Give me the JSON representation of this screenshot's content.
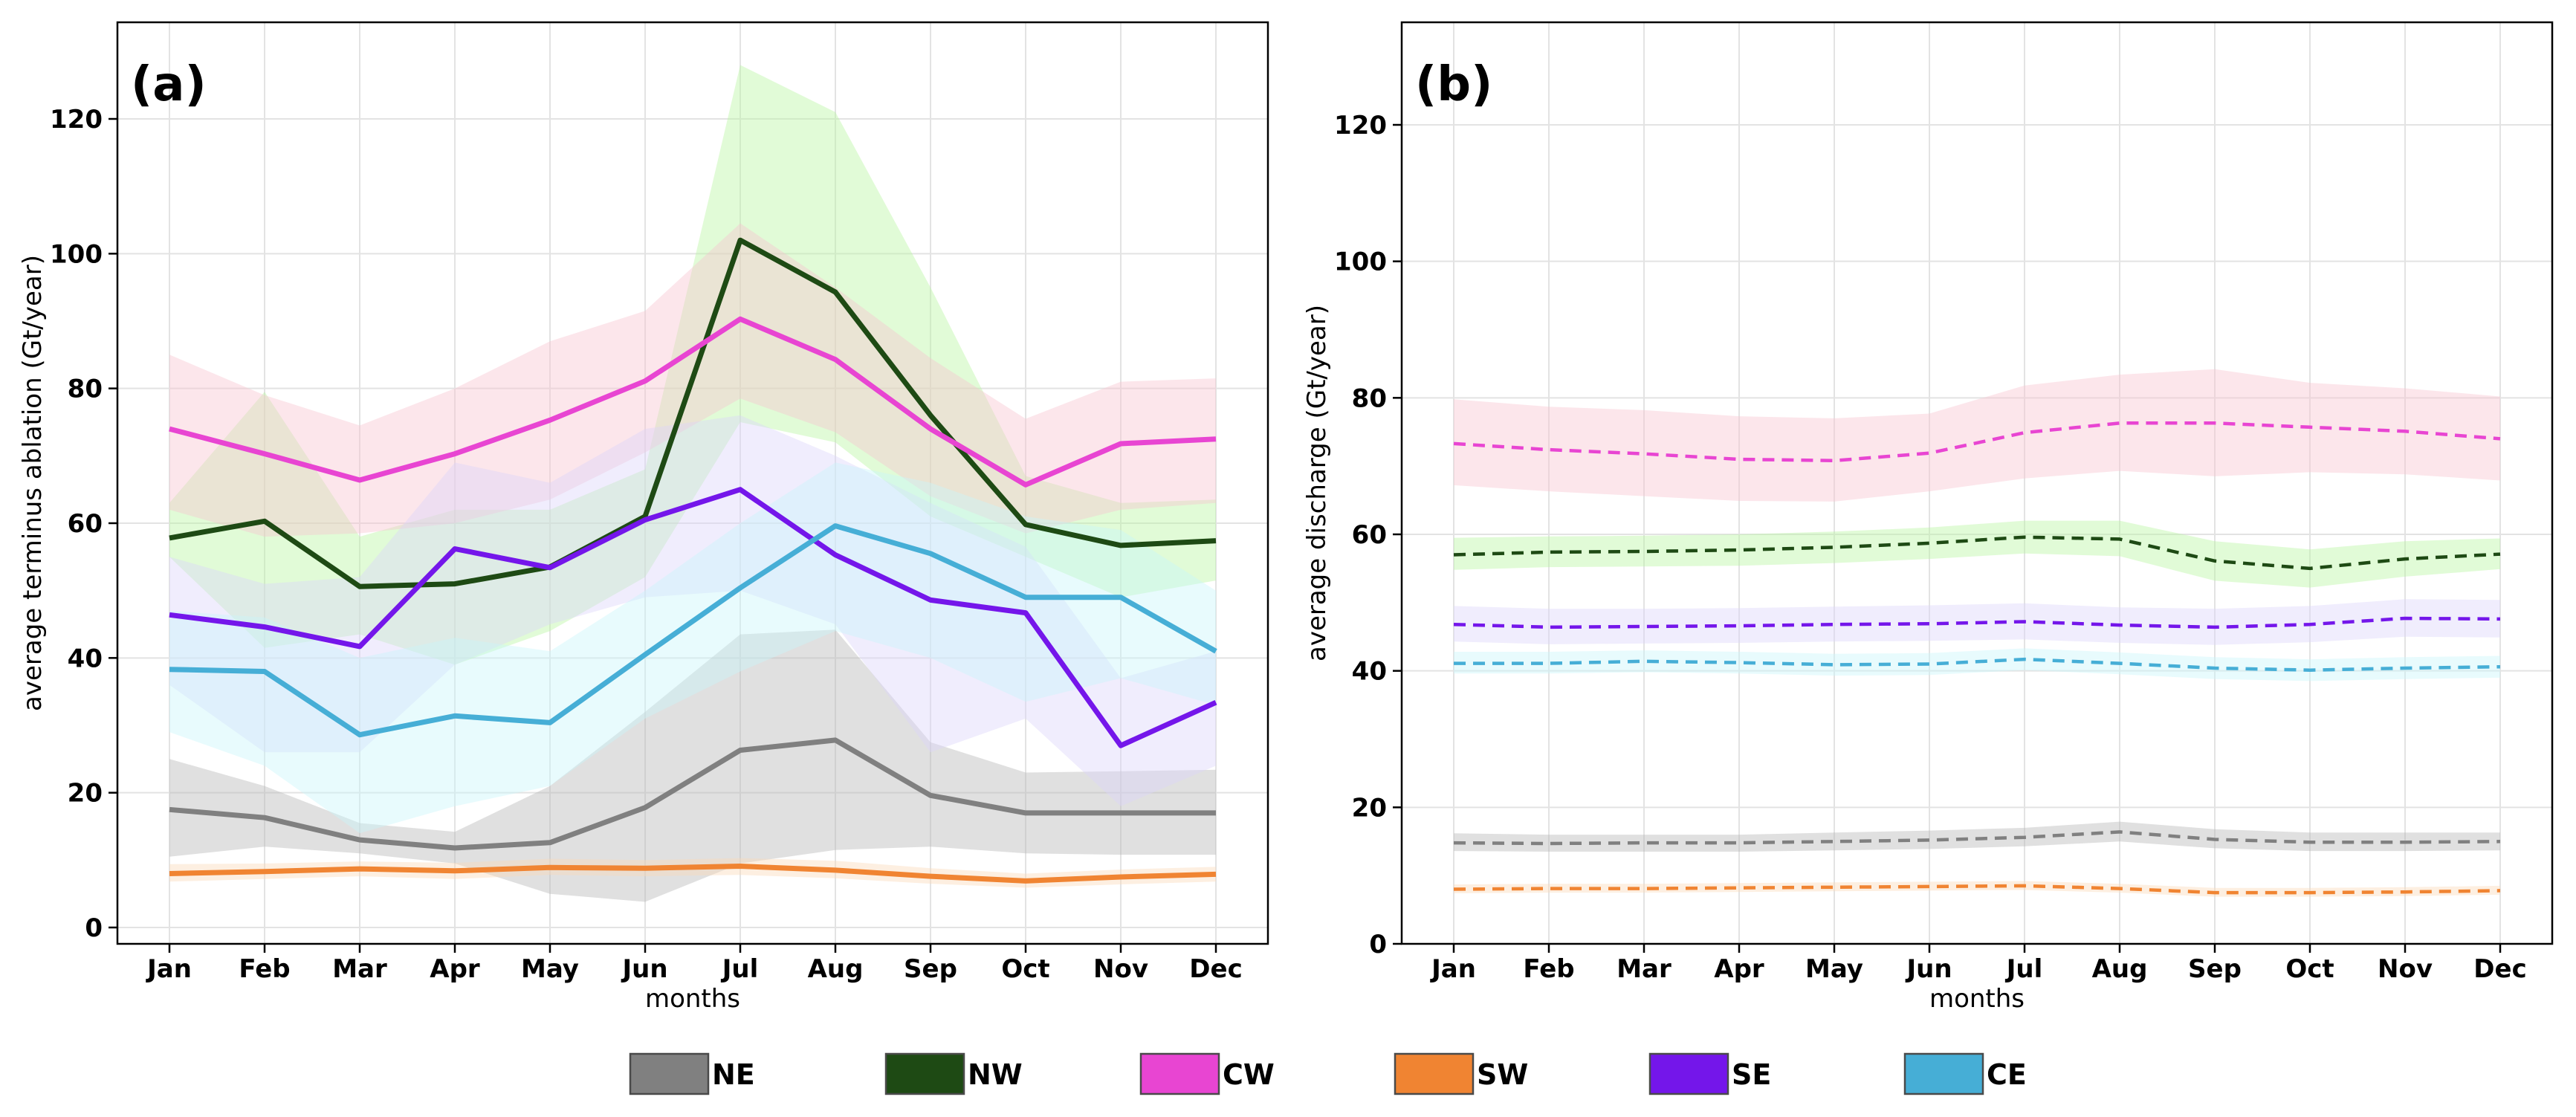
{
  "chart_data": [
    {
      "type": "line",
      "panel_label": "(a)",
      "xlabel": "months",
      "ylabel": "average terminus ablation (Gt/year)",
      "categories": [
        "Jan",
        "Feb",
        "Mar",
        "Apr",
        "May",
        "Jun",
        "Jul",
        "Aug",
        "Sep",
        "Oct",
        "Nov",
        "Dec"
      ],
      "ylim": [
        -2,
        135
      ],
      "yticks": [
        0,
        20,
        40,
        60,
        80,
        100,
        120
      ],
      "line_style": "solid",
      "grid": true,
      "series": [
        {
          "name": "NE",
          "color": "#808080",
          "band_color": "#b4b4b4",
          "values": [
            17.5,
            16.3,
            13.0,
            11.8,
            12.6,
            17.8,
            26.3,
            27.8,
            19.6,
            17.0,
            17.0,
            17.0
          ],
          "lower": [
            10.5,
            12.0,
            11.0,
            9.5,
            5.0,
            3.8,
            9.5,
            11.5,
            12.0,
            11.0,
            10.8,
            10.8
          ],
          "upper": [
            25.0,
            21.0,
            15.5,
            14.2,
            21.0,
            32.0,
            43.5,
            44.2,
            27.5,
            23.0,
            23.2,
            23.4
          ]
        },
        {
          "name": "NW",
          "color": "#1e4a14",
          "band_color": "#b8f5a0",
          "values": [
            57.8,
            60.3,
            50.6,
            51.0,
            53.5,
            61.0,
            102.0,
            94.3,
            76.0,
            59.8,
            56.7,
            57.4
          ],
          "lower": [
            55.0,
            41.5,
            43.5,
            39.0,
            44.0,
            52.0,
            75.0,
            72.0,
            61.0,
            55.0,
            49.0,
            51.5
          ],
          "upper": [
            63.0,
            79.5,
            58.0,
            62.0,
            62.0,
            68.0,
            128.0,
            121.0,
            95.0,
            67.0,
            63.0,
            63.5
          ]
        },
        {
          "name": "CW",
          "color": "#e845d2",
          "band_color": "#f7c4cf",
          "values": [
            74.0,
            70.3,
            66.4,
            70.3,
            75.3,
            81.1,
            90.3,
            84.3,
            74.0,
            65.7,
            71.8,
            72.5
          ],
          "lower": [
            62.0,
            58.0,
            58.5,
            60.0,
            63.5,
            70.5,
            78.5,
            73.5,
            64.0,
            58.5,
            62.0,
            63.0
          ],
          "upper": [
            85.0,
            79.0,
            74.5,
            80.0,
            87.0,
            91.5,
            104.5,
            95.0,
            84.5,
            75.5,
            81.0,
            81.5
          ]
        },
        {
          "name": "SW",
          "color": "#f08432",
          "band_color": "#fbd9b7",
          "values": [
            8.0,
            8.3,
            8.7,
            8.4,
            8.9,
            8.8,
            9.1,
            8.5,
            7.6,
            6.9,
            7.5,
            7.9
          ],
          "lower": [
            6.8,
            7.2,
            7.6,
            7.2,
            7.8,
            7.6,
            7.8,
            7.3,
            6.5,
            5.9,
            6.4,
            6.8
          ],
          "upper": [
            9.4,
            9.5,
            9.8,
            9.6,
            10.2,
            10.0,
            10.3,
            9.9,
            8.8,
            8.0,
            8.6,
            9.0
          ]
        },
        {
          "name": "SE",
          "color": "#7416ea",
          "band_color": "#dcd4fa",
          "values": [
            46.4,
            44.6,
            41.7,
            56.2,
            53.4,
            60.5,
            65.0,
            55.3,
            48.6,
            46.7,
            27.0,
            33.4
          ],
          "lower": [
            36.0,
            26.0,
            26.0,
            39.0,
            45.0,
            49.0,
            50.0,
            45.0,
            26.0,
            31.0,
            18.0,
            24.0
          ],
          "upper": [
            55.0,
            51.0,
            52.0,
            69.0,
            66.0,
            74.0,
            76.0,
            70.0,
            63.0,
            56.5,
            37.0,
            41.0
          ]
        },
        {
          "name": "CE",
          "color": "#46aed6",
          "band_color": "#c8f5fb",
          "values": [
            38.3,
            38.0,
            28.6,
            31.4,
            30.4,
            40.5,
            50.4,
            59.6,
            55.5,
            49.0,
            49.0,
            41.0
          ],
          "lower": [
            29.0,
            24.0,
            14.0,
            18.0,
            21.0,
            31.0,
            38.0,
            44.0,
            40.0,
            33.5,
            37.0,
            33.0
          ],
          "upper": [
            47.0,
            46.0,
            40.0,
            43.0,
            41.0,
            50.0,
            60.0,
            69.0,
            66.0,
            61.0,
            59.0,
            50.0
          ]
        }
      ]
    },
    {
      "type": "line",
      "panel_label": "(b)",
      "xlabel": "months",
      "ylabel": "average discharge (Gt/year)",
      "categories": [
        "Jan",
        "Feb",
        "Mar",
        "Apr",
        "May",
        "Jun",
        "Jul",
        "Aug",
        "Sep",
        "Oct",
        "Nov",
        "Dec"
      ],
      "ylim": [
        0,
        135
      ],
      "yticks": [
        0,
        20,
        40,
        60,
        80,
        100,
        120
      ],
      "line_style": "dashed",
      "grid": true,
      "series": [
        {
          "name": "NE",
          "color": "#808080",
          "band_color": "#b4b4b4",
          "values": [
            14.8,
            14.7,
            14.8,
            14.8,
            15.0,
            15.2,
            15.6,
            16.4,
            15.3,
            14.9,
            14.9,
            15.0
          ],
          "lower": [
            13.6,
            13.5,
            13.5,
            13.5,
            13.7,
            13.9,
            14.3,
            15.0,
            14.0,
            13.6,
            13.6,
            13.7
          ],
          "upper": [
            16.2,
            16.0,
            16.0,
            16.0,
            16.3,
            16.6,
            17.0,
            17.9,
            16.8,
            16.3,
            16.3,
            16.3
          ]
        },
        {
          "name": "NW",
          "color": "#1e4a14",
          "band_color": "#b8f5a0",
          "values": [
            57.0,
            57.4,
            57.5,
            57.7,
            58.1,
            58.7,
            59.6,
            59.3,
            56.1,
            55.0,
            56.4,
            57.1
          ],
          "lower": [
            54.8,
            55.2,
            55.3,
            55.4,
            55.8,
            56.4,
            57.2,
            56.8,
            53.2,
            52.2,
            53.8,
            54.9
          ],
          "upper": [
            59.5,
            59.7,
            59.8,
            60.0,
            60.4,
            61.0,
            62.0,
            62.0,
            59.0,
            57.8,
            59.0,
            59.4
          ]
        },
        {
          "name": "CW",
          "color": "#e845d2",
          "band_color": "#f7c4cf",
          "values": [
            73.3,
            72.4,
            71.8,
            71.0,
            70.8,
            71.9,
            74.9,
            76.3,
            76.3,
            75.7,
            75.1,
            74.0
          ],
          "lower": [
            67.2,
            66.3,
            65.6,
            64.9,
            64.8,
            66.3,
            68.2,
            69.3,
            68.5,
            69.1,
            68.8,
            67.9
          ],
          "upper": [
            79.8,
            78.7,
            78.2,
            77.3,
            77.0,
            77.7,
            81.8,
            83.4,
            84.2,
            82.2,
            81.4,
            80.2
          ]
        },
        {
          "name": "SW",
          "color": "#f08432",
          "band_color": "#fbd9b7",
          "values": [
            8.0,
            8.1,
            8.1,
            8.2,
            8.3,
            8.4,
            8.5,
            8.1,
            7.5,
            7.5,
            7.6,
            7.8
          ],
          "lower": [
            7.4,
            7.5,
            7.5,
            7.6,
            7.7,
            7.8,
            7.9,
            7.5,
            6.9,
            6.9,
            7.0,
            7.2
          ],
          "upper": [
            8.7,
            8.8,
            8.8,
            8.9,
            9.0,
            9.1,
            9.2,
            8.8,
            8.2,
            8.2,
            8.3,
            8.5
          ]
        },
        {
          "name": "SE",
          "color": "#7416ea",
          "band_color": "#dcd4fa",
          "values": [
            46.8,
            46.4,
            46.5,
            46.6,
            46.8,
            46.9,
            47.2,
            46.7,
            46.4,
            46.8,
            47.7,
            47.6
          ],
          "lower": [
            44.3,
            43.9,
            44.0,
            44.1,
            44.3,
            44.4,
            44.6,
            44.1,
            43.8,
            44.2,
            45.0,
            44.9
          ],
          "upper": [
            49.5,
            49.1,
            49.1,
            49.2,
            49.4,
            49.6,
            49.9,
            49.3,
            49.1,
            49.5,
            50.5,
            50.4
          ]
        },
        {
          "name": "CE",
          "color": "#46aed6",
          "band_color": "#c8f5fb",
          "values": [
            41.1,
            41.1,
            41.4,
            41.2,
            40.9,
            41.0,
            41.7,
            41.1,
            40.4,
            40.1,
            40.4,
            40.6
          ],
          "lower": [
            39.6,
            39.6,
            39.8,
            39.6,
            39.3,
            39.4,
            40.1,
            39.5,
            38.8,
            38.5,
            38.8,
            39.0
          ],
          "upper": [
            42.8,
            42.8,
            43.0,
            42.8,
            42.5,
            42.6,
            43.3,
            42.7,
            42.0,
            41.7,
            42.0,
            42.2
          ]
        }
      ]
    }
  ],
  "legend": {
    "placement": "bottom-center",
    "items": [
      {
        "label": "NE",
        "color": "#808080"
      },
      {
        "label": "NW",
        "color": "#1e4a14"
      },
      {
        "label": "CW",
        "color": "#e845d2"
      },
      {
        "label": "SW",
        "color": "#f08432"
      },
      {
        "label": "SE",
        "color": "#7416ea"
      },
      {
        "label": "CE",
        "color": "#46aed6"
      }
    ]
  }
}
